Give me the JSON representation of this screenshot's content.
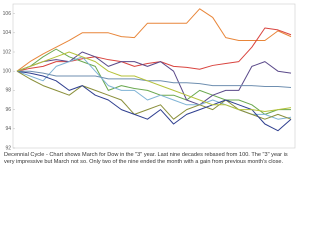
{
  "chart_data": {
    "type": "line",
    "caption": "Decennial Cycle - Chart shows March for Dow in the \"3\" year.  Last nine decades rebased from 100.  The \"3\" year is very impressive but March not so.  Only two of the nine ended the month with a gain from previous month's close.",
    "categories": [
      null,
      null,
      null,
      null,
      null,
      null,
      null,
      null,
      null,
      null,
      null,
      null,
      null,
      null,
      null,
      null,
      null,
      null,
      null,
      null,
      null,
      null
    ],
    "ylim": [
      92,
      107
    ],
    "yticks": [
      92,
      94,
      96,
      98,
      100,
      102,
      104,
      106
    ],
    "grid": false,
    "series": [
      {
        "color": "#e8863a",
        "values": [
          100,
          101,
          101.8,
          102.5,
          103.2,
          104,
          104,
          104,
          103.6,
          103.5,
          105,
          105,
          105,
          105,
          106.5,
          105.6,
          103.5,
          103.2,
          103.2,
          103.2,
          104.2,
          103.6
        ]
      },
      {
        "color": "#d9443f",
        "values": [
          100,
          100.3,
          100.5,
          101,
          101,
          101.3,
          101.5,
          101.2,
          101,
          100.5,
          100.8,
          101,
          100.5,
          100.4,
          100.2,
          100.6,
          100.8,
          101,
          102.5,
          104.5,
          104.3,
          103.8
        ]
      },
      {
        "color": "#6aa84f",
        "values": [
          100,
          100.5,
          101.5,
          102.3,
          101.5,
          101,
          100.5,
          98,
          98.5,
          98.2,
          98,
          97.5,
          97.5,
          97,
          98,
          97.5,
          97,
          97,
          96.5,
          95.5,
          96,
          96
        ]
      },
      {
        "color": "#5b4a8a",
        "values": [
          100,
          100.5,
          101,
          101.2,
          101,
          102,
          101.5,
          100.5,
          101,
          101,
          100.5,
          101,
          100,
          97,
          96.5,
          97.5,
          98,
          98,
          100.5,
          101,
          100,
          99.8
        ]
      },
      {
        "color": "#7fb3d5",
        "values": [
          100,
          99.5,
          99,
          100.5,
          101,
          101.5,
          100,
          98.5,
          98,
          98,
          97,
          97.5,
          97,
          96.5,
          96.5,
          97,
          96.5,
          96,
          95.5,
          95.5,
          95,
          95.2
        ]
      },
      {
        "color": "#8a8f3a",
        "values": [
          100,
          99.2,
          98.5,
          98,
          97.5,
          98.5,
          98,
          97.5,
          97,
          95.5,
          96,
          96.5,
          95,
          96,
          96.5,
          96,
          97,
          96,
          95.5,
          95,
          95.5,
          95
        ]
      },
      {
        "color": "#2f3f8f",
        "values": [
          100,
          99.8,
          99.5,
          99,
          98,
          98.5,
          97.5,
          97,
          96,
          95.5,
          95,
          96,
          94.5,
          95.5,
          96,
          96.5,
          97,
          96.5,
          96,
          94.5,
          93.8,
          95
        ]
      },
      {
        "color": "#6f8fb0",
        "values": [
          100,
          100,
          99.8,
          99.5,
          99.5,
          99.5,
          99.5,
          99.2,
          99.2,
          99.2,
          99,
          99,
          98.8,
          98.8,
          98.7,
          98.5,
          98.5,
          98.5,
          98.5,
          98.4,
          98.4,
          98.3
        ]
      },
      {
        "color": "#b5c23a",
        "values": [
          100,
          100.5,
          101,
          101.5,
          102,
          101.5,
          101,
          100,
          99.5,
          99.5,
          99,
          98.5,
          98,
          97.5,
          97,
          96.5,
          96.5,
          96,
          96,
          95.8,
          96,
          96.2
        ]
      }
    ]
  }
}
